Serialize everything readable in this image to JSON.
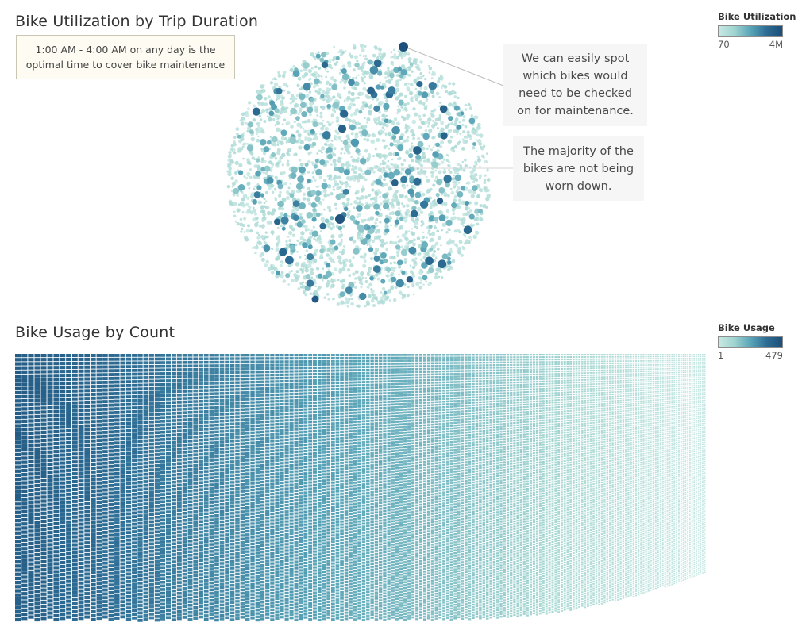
{
  "chart_data": [
    {
      "type": "bubble",
      "title": "Bike Utilization by Trip Duration",
      "legend": {
        "title": "Bike Utilization",
        "min": "70",
        "max": "4M",
        "placement": "top-right"
      },
      "annotations": [
        "We can easily spot which bikes would need to be checked on for maintenance.",
        "The majority of the bikes are not being worn down."
      ],
      "note": "1:00 AM - 4:00 AM on any day is the optimal time to cover bike maintenance"
    },
    {
      "type": "heatmap",
      "title": "Bike Usage by Count",
      "legend": {
        "title": "Bike Usage",
        "min": "1",
        "max": "479",
        "placement": "top-right"
      }
    }
  ],
  "colors": {
    "low": "#c8e9e4",
    "mid": "#5aa5b8",
    "high": "#1c4e78"
  }
}
